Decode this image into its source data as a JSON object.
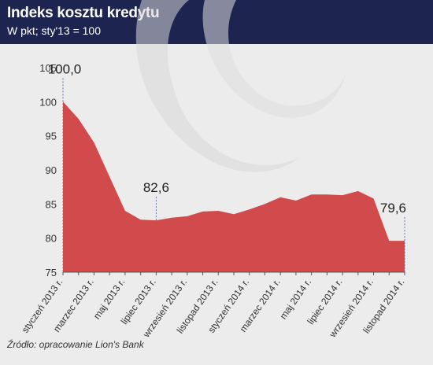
{
  "header": {
    "title": "Indeks kosztu kredytu",
    "subtitle": "W pkt; sty'13 = 100"
  },
  "source": "Źródło: opracowanie Lion's Bank",
  "colors": {
    "header_bg": "#1d2450",
    "area_fill": "#d24b4c",
    "background": "#ececec",
    "guide_line": "#5b6fb0"
  },
  "chart_data": {
    "type": "area",
    "title": "Indeks kosztu kredytu",
    "ylabel": "",
    "xlabel": "",
    "ylim": [
      75,
      105
    ],
    "yticks": [
      75,
      80,
      85,
      90,
      95,
      100,
      105
    ],
    "grid": false,
    "x": [
      "styczeń 2013 r.",
      "luty 2013 r.",
      "marzec 2013 r.",
      "kwiecień 2013 r.",
      "maj 2013 r.",
      "czerwiec 2013 r.",
      "lipiec 2013 r.",
      "sierpień 2013 r.",
      "wrzesień 2013 r.",
      "październik 2013 r.",
      "listopad 2013 r.",
      "grudzień 2013 r.",
      "styczeń 2014 r.",
      "luty 2014 r.",
      "marzec 2014 r.",
      "kwiecień 2014 r.",
      "maj 2014 r.",
      "czerwiec 2014 r.",
      "lipiec 2014 r.",
      "sierpień 2014 r.",
      "wrzesień 2014 r.",
      "październik 2014 r.",
      "listopad 2014 r."
    ],
    "values": [
      100.0,
      97.5,
      94.0,
      89.0,
      84.0,
      82.7,
      82.6,
      83.0,
      83.2,
      83.9,
      84.0,
      83.5,
      84.2,
      85.0,
      86.0,
      85.5,
      86.4,
      86.4,
      86.3,
      86.9,
      85.8,
      79.6,
      79.6
    ],
    "visible_tick_labels": [
      "styczeń 2013 r.",
      "marzec 2013 r.",
      "maj 2013 r.",
      "lipiec 2013 r.",
      "wrzesień 2013 r.",
      "listopad 2013 r.",
      "styczeń 2014 r.",
      "marzec 2014 r.",
      "maj 2014 r.",
      "lipiec 2014 r.",
      "wrzesień 2014 r.",
      "listopad 2014 r."
    ],
    "annotations": [
      {
        "label": "100,0",
        "x": "styczeń 2013 r.",
        "value": 100.0
      },
      {
        "label": "82,6",
        "x": "lipiec 2013 r.",
        "value": 82.6
      },
      {
        "label": "79,6",
        "x": "listopad 2014 r.",
        "value": 79.6
      }
    ]
  }
}
